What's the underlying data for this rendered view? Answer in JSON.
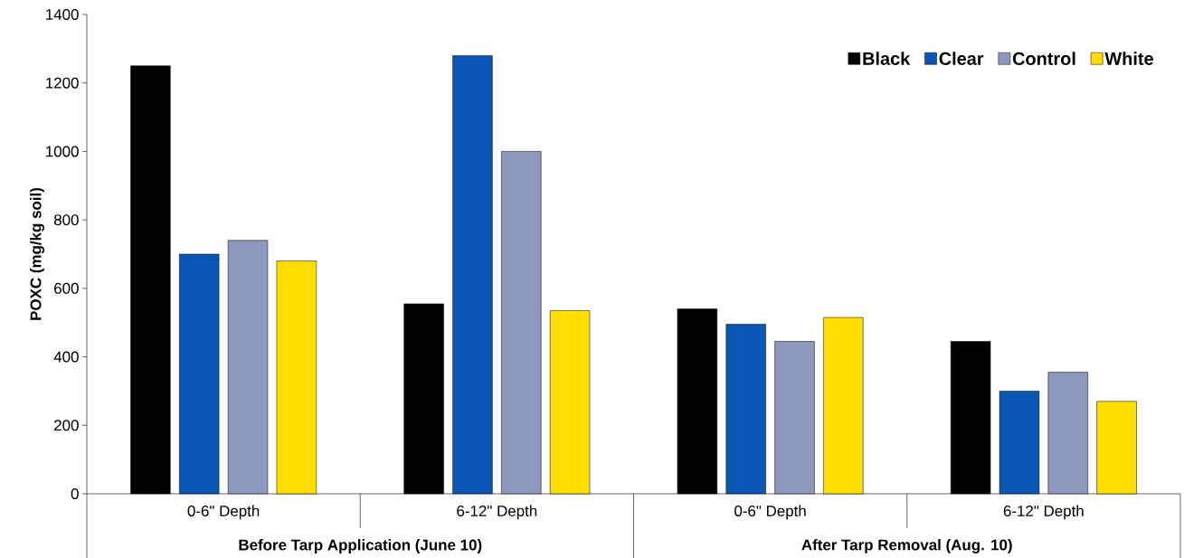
{
  "chart_data": {
    "type": "bar",
    "ylabel": "POXC (mg/kg soil)",
    "categories": [
      "0-6\" Depth",
      "6-12\" Depth",
      "0-6\" Depth",
      "6-12\" Depth"
    ],
    "annotations": [
      "Before Tarp Application (June 10)",
      "After Tarp Removal (Aug. 10)"
    ],
    "series": [
      {
        "name": "Black",
        "color": "#000000",
        "values": [
          1250,
          555,
          540,
          445
        ]
      },
      {
        "name": "Clear",
        "color": "#0a56b4",
        "values": [
          700,
          1280,
          495,
          300
        ]
      },
      {
        "name": "Control",
        "color": "#8e98bf",
        "values": [
          740,
          1000,
          445,
          355
        ]
      },
      {
        "name": "White",
        "color": "#ffdd00",
        "values": [
          680,
          535,
          515,
          270
        ]
      }
    ],
    "ylim": [
      0,
      1400
    ],
    "yticks": [
      0,
      200,
      400,
      600,
      800,
      1000,
      1200,
      1400
    ],
    "legend": "top right"
  }
}
